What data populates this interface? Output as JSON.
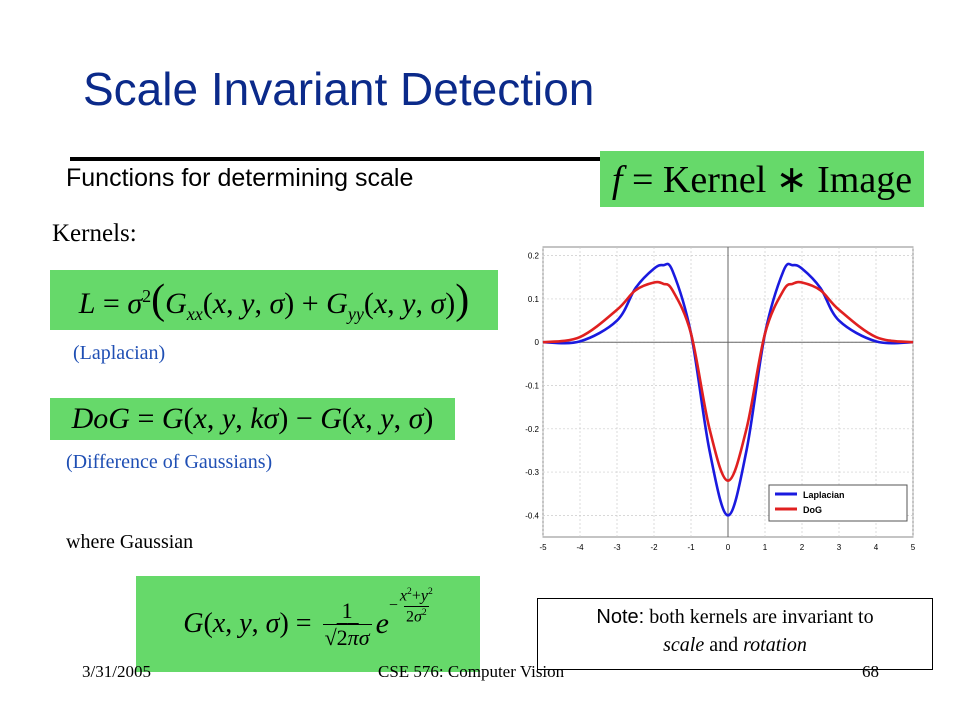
{
  "slide": {
    "title": "Scale Invariant Detection",
    "subtitle": "Functions for determining scale",
    "kernels_label": "Kernels:",
    "laplacian_caption": "(Laplacian)",
    "dog_caption": "(Difference of Gaussians)",
    "where_text": "where Gaussian",
    "note_label": "Note:",
    "note_text": "both kernels are invariant to",
    "note_scale": "scale",
    "note_and": "and",
    "note_rotation": "rotation",
    "footer_date": "3/31/2005",
    "footer_course": "CSE 576: Computer Vision",
    "footer_page": "68",
    "colors": {
      "title": "#0b2a8a",
      "equation_bg": "#66d96a",
      "caption": "#1f4fb4"
    }
  },
  "equations": {
    "main": "f = Kernel * Image",
    "laplacian": "L = σ²( Gxx(x, y, σ) + Gyy(x, y, σ) )",
    "dog": "DoG = G(x, y, kσ) − G(x, y, σ)",
    "gaussian": "G(x, y, σ) = 1/(√(2π)σ) e^(−(x²+y²)/(2σ²))"
  },
  "chart_data": {
    "type": "line",
    "xlim": [
      -5,
      5
    ],
    "ylim": [
      -0.45,
      0.22
    ],
    "xticks": [
      "-5",
      "-4",
      "-3",
      "-2",
      "-1",
      "0",
      "1",
      "2",
      "3",
      "4",
      "5"
    ],
    "yticks": [
      "0.2",
      "0.1",
      "0",
      "-0.1",
      "-0.2",
      "-0.3",
      "-0.4"
    ],
    "grid": true,
    "legend_position": "bottom-right",
    "series": [
      {
        "name": "Laplacian",
        "color": "#1a1adf",
        "x": [
          -5,
          -4,
          -3,
          -2.5,
          -2,
          -1.75,
          -1.5,
          -1,
          -0.5,
          0,
          0.5,
          1,
          1.5,
          1.75,
          2,
          2.5,
          3,
          4,
          5
        ],
        "y": [
          0,
          0.002,
          0.05,
          0.125,
          0.17,
          0.178,
          0.165,
          0.02,
          -0.25,
          -0.4,
          -0.25,
          0.02,
          0.165,
          0.178,
          0.17,
          0.125,
          0.05,
          0.002,
          0
        ]
      },
      {
        "name": "DoG",
        "color": "#e02020",
        "x": [
          -5,
          -4,
          -3,
          -2.5,
          -2,
          -1.75,
          -1.5,
          -1,
          -0.5,
          0,
          0.5,
          1,
          1.5,
          1.75,
          2,
          2.5,
          3,
          4,
          5
        ],
        "y": [
          0,
          0.012,
          0.075,
          0.12,
          0.138,
          0.135,
          0.12,
          0.02,
          -0.2,
          -0.32,
          -0.2,
          0.02,
          0.12,
          0.135,
          0.138,
          0.12,
          0.075,
          0.012,
          0
        ]
      }
    ]
  }
}
